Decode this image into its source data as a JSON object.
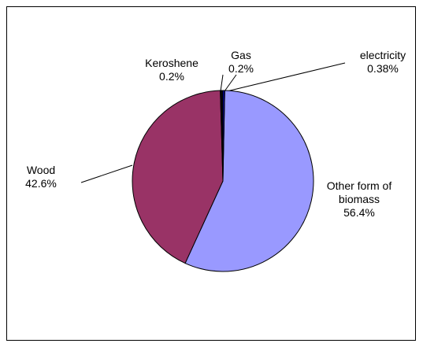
{
  "chart_data": {
    "type": "pie",
    "categories": [
      "Other form of biomass",
      "Wood",
      "Keroshene",
      "Gas",
      "electricity"
    ],
    "values": [
      56.4,
      42.6,
      0.2,
      0.2,
      0.38
    ],
    "value_labels": [
      "56.4%",
      "42.6%",
      "0.2%",
      "0.2%",
      "0.38%"
    ],
    "colors": [
      "#9999ff",
      "#993366",
      "#000000",
      "#1a1a1a",
      "#000080"
    ]
  }
}
